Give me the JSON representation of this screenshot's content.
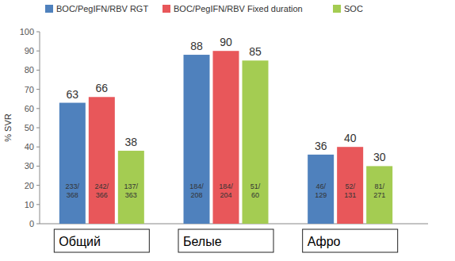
{
  "chart_data": {
    "type": "bar",
    "y_label": "% SVR",
    "categories": [
      "Общий",
      "Белые",
      "Афро"
    ],
    "series": [
      {
        "name": "BOC/PegIFN/RBV RGT",
        "color": "#4f81bd",
        "values": [
          63,
          88,
          36
        ],
        "counts": [
          "233/368",
          "184/208",
          "46/129"
        ]
      },
      {
        "name": "BOC/PegIFN/RBV Fixed duration",
        "color": "#e8575a",
        "values": [
          66,
          90,
          40
        ],
        "counts": [
          "242/366",
          "184/204",
          "52/131"
        ]
      },
      {
        "name": "SOC",
        "color": "#a4cc52",
        "values": [
          38,
          85,
          30
        ],
        "counts": [
          "137/363",
          "51/60",
          "81/271"
        ]
      }
    ],
    "ylim": [
      0,
      100
    ],
    "yticks": [
      0,
      10,
      20,
      30,
      40,
      50,
      60,
      70,
      80,
      90,
      100
    ],
    "data_labels": true,
    "grid": false,
    "legend": "top"
  }
}
